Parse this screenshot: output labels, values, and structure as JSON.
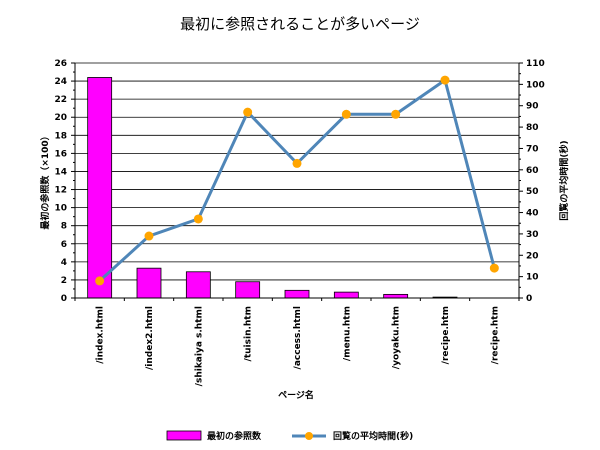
{
  "chart_data": {
    "type": "bar",
    "title": "最初に参照されることが多いページ",
    "xlabel": "ページ名",
    "categories": [
      "/index.html",
      "/index2.html",
      "/shikaiya s.html",
      "/tuisin.htm",
      "/access.html",
      "/menu.htm",
      "/yoyaku.htm",
      "/recipe.htm",
      "/recipe.htm"
    ],
    "series": [
      {
        "name": "最初の参照数",
        "type": "bar",
        "axis": "left",
        "color": "#ff00ff",
        "values": [
          24.4,
          3.3,
          2.9,
          1.8,
          0.85,
          0.65,
          0.4,
          0.1,
          0
        ]
      },
      {
        "name": "回覧の平均時間(秒)",
        "type": "line",
        "axis": "right",
        "color": "#4f86b8",
        "marker_color": "#ffa500",
        "values": [
          8,
          29,
          37,
          87,
          63,
          86,
          86,
          102,
          14
        ]
      }
    ],
    "y_left": {
      "label": "最初の参照数（×100）",
      "ylim": [
        0,
        26
      ],
      "ticks": [
        "0",
        "2",
        "4",
        "6",
        "8",
        "10",
        "12",
        "14",
        "16",
        "18",
        "20",
        "22",
        "24",
        "26"
      ]
    },
    "y_right": {
      "label": "回覧の平均時間(秒)",
      "ylim": [
        0,
        110
      ],
      "ticks": [
        "0",
        "10",
        "20",
        "30",
        "40",
        "50",
        "60",
        "70",
        "80",
        "90",
        "100",
        "110"
      ]
    },
    "grid": true,
    "legend_position": "bottom"
  }
}
